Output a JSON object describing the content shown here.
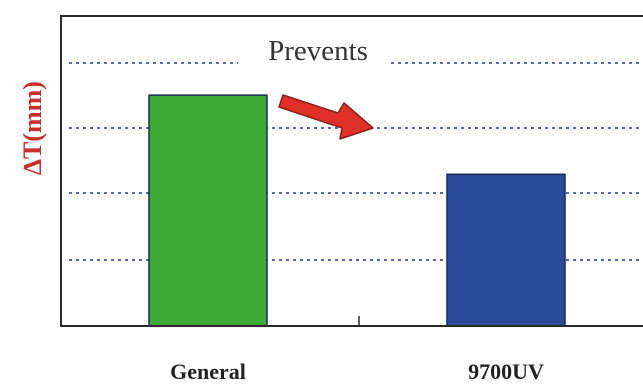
{
  "chart_data": {
    "type": "bar",
    "categories": [
      "General",
      "9700UV"
    ],
    "values": [
      3.5,
      2.3
    ],
    "ylabel": "∆T(mm)",
    "ylim": [
      0,
      4.7
    ],
    "grid": true,
    "annotation": "Prevents",
    "colors": {
      "bars": [
        "#3aaa35",
        "#2b4a9c"
      ],
      "arrow": "#e03028",
      "grid": "#1f33a8",
      "ylabel": "#c8302b"
    }
  }
}
